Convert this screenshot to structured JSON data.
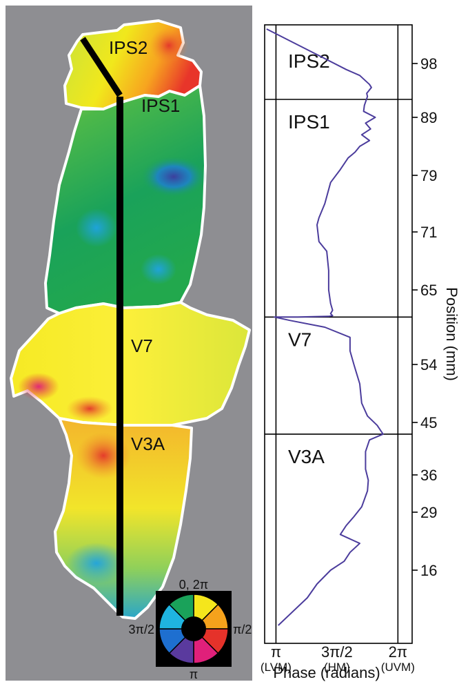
{
  "map_panel": {
    "background": "#8e8e92",
    "region_labels": [
      "IPS2",
      "IPS1",
      "V7",
      "V3A"
    ],
    "colorwheel": {
      "top_label": "0, 2π",
      "right_label": "π/2",
      "bottom_label": "π",
      "left_label": "3π/2",
      "hue_order": [
        "yellow",
        "orange",
        "red",
        "magenta",
        "purple",
        "blue",
        "cyan",
        "green"
      ]
    }
  },
  "chart_data": {
    "type": "line",
    "series_color": "#4b3c9c",
    "xlabel": "Phase (radians)",
    "ylabel": "Position (mm)",
    "x_ticks": [
      {
        "value": 3.14159,
        "label": "π",
        "sub": "(LVM)"
      },
      {
        "value": 4.71239,
        "label": "3π/2",
        "sub": "(HM)"
      },
      {
        "value": 6.28319,
        "label": "2π",
        "sub": "(UVM)"
      }
    ],
    "xlim": [
      2.85,
      6.65
    ],
    "y_ticks": [
      {
        "value": 16,
        "label": "16"
      },
      {
        "value": 29,
        "label": "29"
      },
      {
        "value": 36,
        "label": "36"
      },
      {
        "value": 45,
        "label": "45"
      },
      {
        "value": 54,
        "label": "54"
      },
      {
        "value": 65,
        "label": "65"
      },
      {
        "value": 71,
        "label": "71"
      },
      {
        "value": 79,
        "label": "79"
      },
      {
        "value": 89,
        "label": "89"
      },
      {
        "value": 98,
        "label": "98"
      }
    ],
    "vertical_reference_lines": [
      3.14159,
      6.28319
    ],
    "region_boundaries": [
      {
        "name": "IPS2",
        "from": 92,
        "to": 103
      },
      {
        "name": "IPS1",
        "from": 61,
        "to": 92
      },
      {
        "name": "V7",
        "from": 43,
        "to": 61
      },
      {
        "name": "V3A",
        "from": 8,
        "to": 43
      }
    ],
    "series": [
      {
        "x": [
          2.9,
          3.6,
          4.3,
          4.95,
          5.3,
          5.55,
          5.6,
          5.48,
          5.5,
          5.42,
          5.4,
          5.7,
          5.45,
          5.58,
          5.35,
          5.55,
          5.3,
          5.18,
          5.0,
          4.8,
          4.55,
          4.4,
          4.25,
          4.2,
          4.25,
          4.45,
          4.5,
          4.5,
          4.55,
          4.6,
          4.55,
          4.6,
          4.5,
          3.7,
          3.1,
          3.5,
          4.4,
          5.05,
          5.05,
          5.15,
          5.2,
          5.3,
          5.35,
          5.5,
          5.75,
          5.9,
          5.55,
          5.45,
          5.45,
          5.52,
          5.5,
          5.35,
          5.15,
          4.95,
          4.8,
          5.3,
          5.05,
          4.9,
          4.55,
          4.2,
          3.95,
          3.2
        ],
        "y": [
          103,
          101,
          99,
          97,
          96,
          94.5,
          94,
          93,
          92.5,
          91,
          90,
          89,
          88,
          87,
          86,
          85,
          84,
          83,
          82,
          80,
          78,
          75,
          73,
          72,
          70,
          69,
          67,
          65,
          63,
          62,
          61.5,
          61.2,
          61.1,
          61,
          61,
          60.5,
          59.5,
          58,
          56,
          54,
          53,
          51,
          48,
          46,
          44.5,
          43,
          42,
          40,
          37,
          35,
          33,
          30,
          28,
          26,
          24,
          22,
          20,
          18,
          16,
          14,
          12,
          8
        ]
      }
    ]
  }
}
